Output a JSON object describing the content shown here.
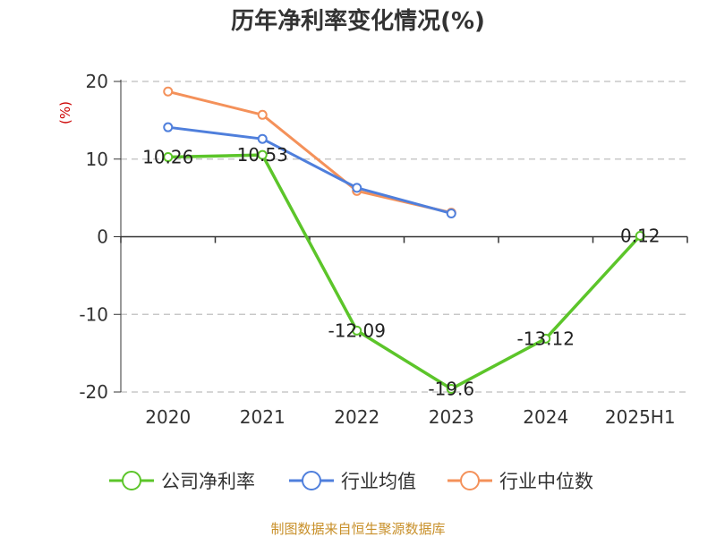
{
  "colors": {
    "company": "#5cc52a",
    "industry_avg": "#4f7fdc",
    "industry_median": "#f4915a",
    "ylabel": "#cc0000",
    "source": "#c8902a",
    "grid": "#c8c8c8",
    "axis": "#333333"
  },
  "source": "制图数据来自恒生聚源数据库",
  "chart_data": {
    "type": "line",
    "title": "历年净利率变化情况(%)",
    "ylabel": "(%)",
    "xlabel": "",
    "ylim": [
      -20,
      20
    ],
    "yticks": [
      20,
      10,
      0,
      -10,
      -20
    ],
    "categories": [
      "2020",
      "2021",
      "2022",
      "2023",
      "2024",
      "2025H1"
    ],
    "grid": true,
    "legend_position": "bottom",
    "series": [
      {
        "key": "company",
        "name": "公司净利率",
        "values": [
          10.26,
          10.53,
          -12.09,
          -19.6,
          -13.12,
          0.12
        ],
        "labels": [
          "10.26",
          "10.53",
          "-12.09",
          "-19.6",
          "-13.12",
          "0.12"
        ]
      },
      {
        "key": "industry_avg",
        "name": "行业均值",
        "values": [
          14.1,
          12.6,
          6.3,
          3.0,
          null,
          null
        ]
      },
      {
        "key": "industry_median",
        "name": "行业中位数",
        "values": [
          18.7,
          15.7,
          5.9,
          3.1,
          null,
          null
        ]
      }
    ]
  }
}
